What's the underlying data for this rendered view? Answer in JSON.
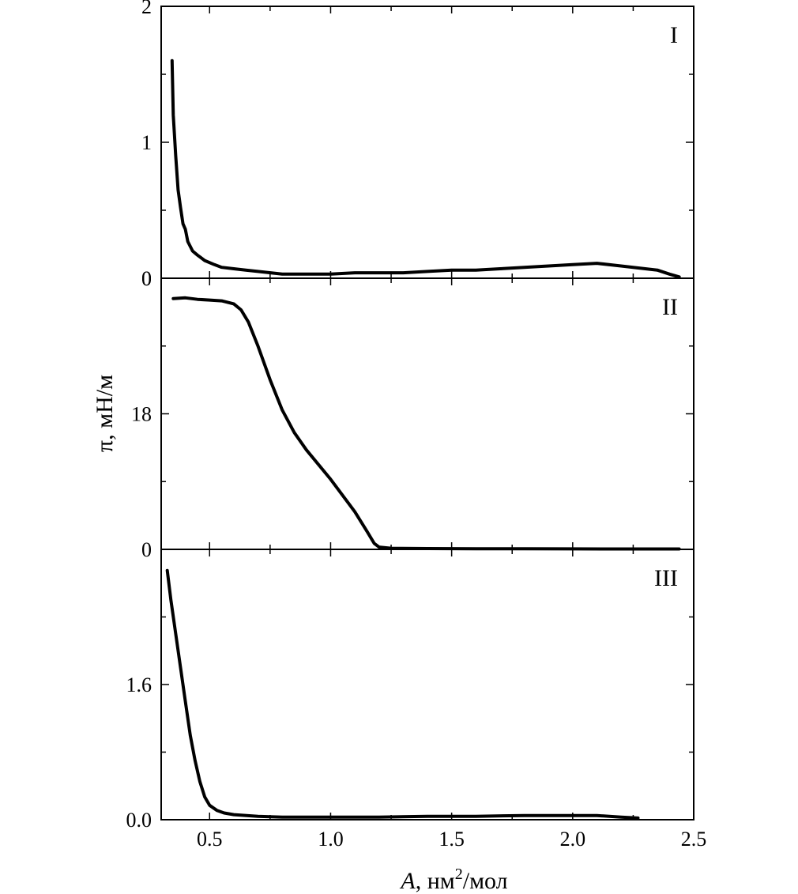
{
  "chart_data": {
    "type": "line",
    "xlabel_var": "A",
    "xlabel_unit": ", нм",
    "xlabel_sup": "2",
    "xlabel_tail": "/мол",
    "ylabel": "π, мН/м",
    "xlim": [
      0.3,
      2.5
    ],
    "xticks": [
      "0.5",
      "1.0",
      "1.5",
      "2.0",
      "2.5"
    ],
    "xtick_values": [
      0.5,
      1.0,
      1.5,
      2.0,
      2.5
    ],
    "panels": [
      {
        "label": "I",
        "ylim": [
          0,
          2
        ],
        "yticks": [
          {
            "v": 0,
            "t": "0"
          },
          {
            "v": 1,
            "t": "1"
          },
          {
            "v": 2,
            "t": "2"
          }
        ],
        "minor_y": [
          0.5,
          1.5
        ],
        "series": [
          {
            "x": 0.345,
            "y": 1.6
          },
          {
            "x": 0.35,
            "y": 1.2
          },
          {
            "x": 0.36,
            "y": 0.9
          },
          {
            "x": 0.37,
            "y": 0.65
          },
          {
            "x": 0.38,
            "y": 0.52
          },
          {
            "x": 0.39,
            "y": 0.4
          },
          {
            "x": 0.4,
            "y": 0.36
          },
          {
            "x": 0.41,
            "y": 0.27
          },
          {
            "x": 0.43,
            "y": 0.2
          },
          {
            "x": 0.45,
            "y": 0.17
          },
          {
            "x": 0.48,
            "y": 0.13
          },
          {
            "x": 0.52,
            "y": 0.1
          },
          {
            "x": 0.55,
            "y": 0.08
          },
          {
            "x": 0.6,
            "y": 0.07
          },
          {
            "x": 0.65,
            "y": 0.06
          },
          {
            "x": 0.7,
            "y": 0.05
          },
          {
            "x": 0.8,
            "y": 0.03
          },
          {
            "x": 0.9,
            "y": 0.03
          },
          {
            "x": 1.0,
            "y": 0.03
          },
          {
            "x": 1.1,
            "y": 0.04
          },
          {
            "x": 1.2,
            "y": 0.04
          },
          {
            "x": 1.3,
            "y": 0.04
          },
          {
            "x": 1.4,
            "y": 0.05
          },
          {
            "x": 1.5,
            "y": 0.06
          },
          {
            "x": 1.6,
            "y": 0.06
          },
          {
            "x": 1.7,
            "y": 0.07
          },
          {
            "x": 1.8,
            "y": 0.08
          },
          {
            "x": 1.9,
            "y": 0.09
          },
          {
            "x": 2.0,
            "y": 0.1
          },
          {
            "x": 2.1,
            "y": 0.11
          },
          {
            "x": 2.2,
            "y": 0.09
          },
          {
            "x": 2.3,
            "y": 0.07
          },
          {
            "x": 2.35,
            "y": 0.06
          },
          {
            "x": 2.4,
            "y": 0.03
          },
          {
            "x": 2.44,
            "y": 0.01
          }
        ]
      },
      {
        "label": "II",
        "ylim": [
          0,
          36
        ],
        "yticks": [
          {
            "v": 0,
            "t": "0"
          },
          {
            "v": 18,
            "t": "18"
          },
          {
            "v": 36,
            "t": "0"
          }
        ],
        "minor_y": [
          9,
          27
        ],
        "series": [
          {
            "x": 0.35,
            "y": 33.3
          },
          {
            "x": 0.4,
            "y": 33.4
          },
          {
            "x": 0.45,
            "y": 33.2
          },
          {
            "x": 0.5,
            "y": 33.1
          },
          {
            "x": 0.55,
            "y": 33.0
          },
          {
            "x": 0.6,
            "y": 32.6
          },
          {
            "x": 0.63,
            "y": 31.8
          },
          {
            "x": 0.66,
            "y": 30.2
          },
          {
            "x": 0.7,
            "y": 27.0
          },
          {
            "x": 0.75,
            "y": 22.5
          },
          {
            "x": 0.8,
            "y": 18.5
          },
          {
            "x": 0.85,
            "y": 15.5
          },
          {
            "x": 0.9,
            "y": 13.2
          },
          {
            "x": 1.0,
            "y": 9.3
          },
          {
            "x": 1.1,
            "y": 5.0
          },
          {
            "x": 1.15,
            "y": 2.4
          },
          {
            "x": 1.18,
            "y": 0.8
          },
          {
            "x": 1.2,
            "y": 0.3
          },
          {
            "x": 1.25,
            "y": 0.15
          },
          {
            "x": 1.4,
            "y": 0.1
          },
          {
            "x": 1.6,
            "y": 0.08
          },
          {
            "x": 1.8,
            "y": 0.07
          },
          {
            "x": 2.0,
            "y": 0.06
          },
          {
            "x": 2.2,
            "y": 0.05
          },
          {
            "x": 2.44,
            "y": 0.05
          }
        ]
      },
      {
        "label": "III",
        "ylim": [
          0,
          3.2
        ],
        "yticks": [
          {
            "v": 0,
            "t": "0.0"
          },
          {
            "v": 1.6,
            "t": "1.6"
          }
        ],
        "minor_y": [
          0.8,
          2.4
        ],
        "series": [
          {
            "x": 0.325,
            "y": 2.95
          },
          {
            "x": 0.34,
            "y": 2.6
          },
          {
            "x": 0.36,
            "y": 2.2
          },
          {
            "x": 0.38,
            "y": 1.8
          },
          {
            "x": 0.4,
            "y": 1.4
          },
          {
            "x": 0.42,
            "y": 1.0
          },
          {
            "x": 0.44,
            "y": 0.7
          },
          {
            "x": 0.46,
            "y": 0.45
          },
          {
            "x": 0.48,
            "y": 0.27
          },
          {
            "x": 0.5,
            "y": 0.17
          },
          {
            "x": 0.53,
            "y": 0.11
          },
          {
            "x": 0.56,
            "y": 0.08
          },
          {
            "x": 0.6,
            "y": 0.06
          },
          {
            "x": 0.7,
            "y": 0.04
          },
          {
            "x": 0.8,
            "y": 0.03
          },
          {
            "x": 0.9,
            "y": 0.03
          },
          {
            "x": 1.0,
            "y": 0.03
          },
          {
            "x": 1.2,
            "y": 0.03
          },
          {
            "x": 1.4,
            "y": 0.04
          },
          {
            "x": 1.6,
            "y": 0.04
          },
          {
            "x": 1.8,
            "y": 0.05
          },
          {
            "x": 2.0,
            "y": 0.05
          },
          {
            "x": 2.1,
            "y": 0.05
          },
          {
            "x": 2.2,
            "y": 0.03
          },
          {
            "x": 2.27,
            "y": 0.02
          }
        ]
      }
    ],
    "grid": false,
    "legend": "none"
  }
}
